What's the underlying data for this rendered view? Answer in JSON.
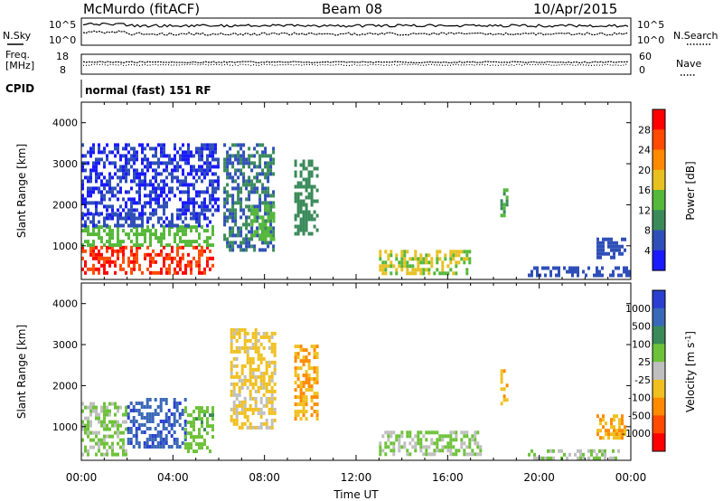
{
  "header": {
    "station": "McMurdo (fitACF)",
    "beam": "Beam 08",
    "date": "10/Apr/2015",
    "cpid_label": "CPID",
    "cpid_value": "normal (fast) 151 RF"
  },
  "noise_panel": {
    "left_label": "N.Sky",
    "right_label": "N.Search",
    "tick_top": "10^5",
    "tick_bottom": "10^0",
    "right_tick_top": "10^5",
    "right_tick_bottom": "10^0"
  },
  "freq_panel": {
    "left_label_line1": "Freq.",
    "left_label_line2": "[MHz]",
    "left_tick_top": "18",
    "left_tick_bottom": "8",
    "right_label": "Nave",
    "right_tick_top": "60",
    "right_tick_bottom": "0"
  },
  "x_axis": {
    "label": "Time UT",
    "ticks": [
      "00:00",
      "04:00",
      "08:00",
      "12:00",
      "16:00",
      "20:00",
      "00:00"
    ]
  },
  "colors": {
    "power_scale": [
      "#1a1aff",
      "#2f4fb8",
      "#3a8a5a",
      "#55b83a",
      "#e8c020",
      "#ff8a00",
      "#ff4a00",
      "#ff0000"
    ],
    "velocity_scale": [
      "#2a3fd0",
      "#3a68b8",
      "#3a8a5a",
      "#6ec23a",
      "#bfbfbf",
      "#f0c020",
      "#ff8a00",
      "#ff4a00",
      "#ff0000"
    ]
  },
  "chart_data": [
    {
      "type": "heatmap",
      "title": "Power",
      "xlabel": "",
      "ylabel": "Slant Range [km]",
      "xlim": [
        0,
        24
      ],
      "ylim": [
        180,
        4500
      ],
      "yticks": [
        "1000",
        "2000",
        "3000",
        "4000"
      ],
      "colorbar": {
        "label": "Power [dB]",
        "ticks": [
          "4",
          "8",
          "12",
          "16",
          "20",
          "24",
          "28"
        ],
        "range": [
          0,
          32
        ]
      },
      "regions": [
        {
          "t0": 0.0,
          "t1": 5.7,
          "r0": 300,
          "r1": 1000,
          "value": 28
        },
        {
          "t0": 0.0,
          "t1": 5.7,
          "r0": 1000,
          "r1": 1500,
          "value": 14
        },
        {
          "t0": 0.0,
          "t1": 5.7,
          "r0": 1500,
          "r1": 1800,
          "value": 5
        },
        {
          "t0": 0.0,
          "t1": 6.0,
          "r0": 1800,
          "r1": 3500,
          "value": 4
        },
        {
          "t0": 6.2,
          "t1": 8.4,
          "r0": 900,
          "r1": 3500,
          "value": 8
        },
        {
          "t0": 7.4,
          "t1": 8.4,
          "r0": 1200,
          "r1": 2000,
          "value": 14
        },
        {
          "t0": 9.3,
          "t1": 10.3,
          "r0": 1300,
          "r1": 3100,
          "value": 10
        },
        {
          "t0": 13.0,
          "t1": 17.0,
          "r0": 350,
          "r1": 900,
          "value": 16
        },
        {
          "t0": 18.3,
          "t1": 18.6,
          "r0": 1700,
          "r1": 2400,
          "value": 12
        },
        {
          "t0": 19.5,
          "t1": 24.0,
          "r0": 250,
          "r1": 500,
          "value": 6
        },
        {
          "t0": 22.5,
          "t1": 23.8,
          "r0": 700,
          "r1": 1200,
          "value": 6
        }
      ]
    },
    {
      "type": "heatmap",
      "title": "Velocity",
      "xlabel": "Time UT",
      "ylabel": "Slant Range [km]",
      "xlim": [
        0,
        24
      ],
      "ylim": [
        180,
        4500
      ],
      "yticks": [
        "1000",
        "2000",
        "3000",
        "4000"
      ],
      "colorbar": {
        "label": "Velocity [m s^-1]",
        "ticks": [
          "1000",
          "500",
          "100",
          "25",
          "-25",
          "-100",
          "-500",
          "-1000"
        ],
        "range": [
          -1250,
          1250
        ]
      },
      "regions": [
        {
          "t0": 0.0,
          "t1": 2.0,
          "r0": 300,
          "r1": 1600,
          "value": 200
        },
        {
          "t0": 2.0,
          "t1": 4.5,
          "r0": 500,
          "r1": 1700,
          "value": 900
        },
        {
          "t0": 4.5,
          "t1": 5.8,
          "r0": 400,
          "r1": 1500,
          "value": 300
        },
        {
          "t0": 6.5,
          "t1": 8.5,
          "r0": 1000,
          "r1": 3400,
          "value": -200
        },
        {
          "t0": 9.3,
          "t1": 10.3,
          "r0": 1200,
          "r1": 3000,
          "value": -400
        },
        {
          "t0": 13.0,
          "t1": 17.5,
          "r0": 300,
          "r1": 900,
          "value": 150
        },
        {
          "t0": 18.3,
          "t1": 18.6,
          "r0": 1600,
          "r1": 2400,
          "value": -300
        },
        {
          "t0": 19.5,
          "t1": 23.5,
          "r0": 200,
          "r1": 450,
          "value": 80
        },
        {
          "t0": 22.5,
          "t1": 23.8,
          "r0": 700,
          "r1": 1300,
          "value": -400
        }
      ]
    }
  ]
}
